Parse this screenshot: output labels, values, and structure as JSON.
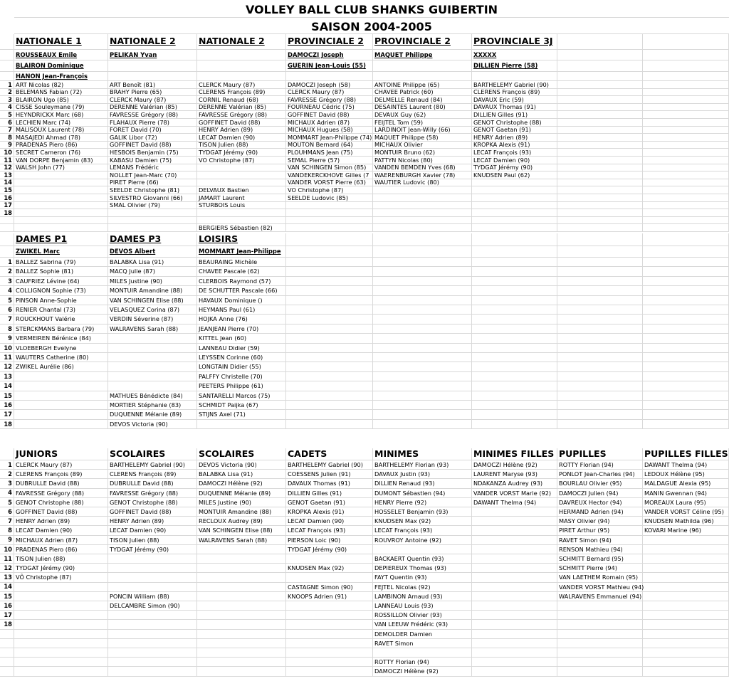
{
  "title": "VOLLEY BALL CLUB SHANKS GUIBERTIN",
  "season": "SAISON 2004-2005",
  "sections": [
    {
      "headers": [
        "NATIONALE 1",
        "NATIONALE 2",
        "NATIONALE 2",
        "PROVINCIALE 2",
        "PROVINCIALE 2",
        "PROVINCIALE 3J",
        "",
        ""
      ],
      "headers_underlined": true,
      "captains": [
        [
          "ROUSSEAUX  Emile",
          "PELIKAN  Yvan",
          "",
          "DAMOCZI   Joseph",
          "MAQUET  Philippe",
          "XXXXX",
          "",
          ""
        ],
        [
          "BLAIRON  Dominique",
          "",
          "",
          "GUERIN  Jean-Louis (55)",
          "",
          "DILLIEN  Pierre  (58)",
          "",
          ""
        ],
        [
          "HANON  Jean-François",
          "",
          "",
          "",
          "",
          "",
          "",
          ""
        ]
      ],
      "numbered_rows": 18,
      "columns": [
        [
          "ART  Nicolas  (82)",
          "BELEMANS  Fabian  (72)",
          "BLAIRON  Ugo (85)",
          "CISSE  Souleymane  (79)",
          "HEYNDRICKX  Marc (68)",
          "LECHIEN  Marc  (74)",
          "MALISOUX  Laurent  (78)",
          "MASAJEDI  Ahmad (78)",
          "PRADENAS  Piero  (86)",
          "SECRET  Cameron (76)",
          "VAN DORPE  Benjamin (83)",
          "WALSH  John  (77)"
        ],
        [
          "ART  Benoît  (81)",
          "BRAHY  Pierre  (65)",
          "CLERCK  Maury (87)",
          "DERENNE  Valérian (85)",
          "FAVRESSE  Grégory  (88)",
          "FLAHAUX  Pierre  (78)",
          "FORET  David  (70)",
          "GALIK  Libor  (72)",
          "GOFFINET  David (88)",
          "HESBOIS  Benjamin (75)",
          "KABASU  Damien (75)",
          "LEMANS  Frédéric",
          "NOLLET  Jean-Marc  (70)",
          "PIRET  Pierre (66)",
          "SEELDE  Christophe (81)",
          "SILVESTRO  Giovanni (66)",
          "SMAL  Olivier  (79)"
        ],
        [
          "CLERCK  Maury (87)",
          "CLERENS  François  (89)",
          "CORNIL  Renaud (68)",
          "DERENNE  Valérian (85)",
          "FAVRESSE  Grégory  (88)",
          "GOFFINET  David (88)",
          "HENRY  Adrien (89)",
          "LECAT Damien (90)",
          "TISON  Julien (88)",
          "TYDGAT Jérémy (90)",
          "VO  Christophe (87)",
          "",
          "",
          "",
          "DELVAUX  Bastien",
          "JAMART  Laurent",
          "STURBOIS Louis",
          "",
          "",
          "BERGIERS  Sébastien (82)"
        ],
        [
          "DAMOCZI   Joseph (58)",
          "CLERCK  Maury (87)",
          "FAVRESSE  Grégory  (88)",
          "FOURNEAU  Cédric (75)",
          "GOFFINET  David (88)",
          "MICHAUX  Adrien  (87)",
          "MICHAUX  Hugues  (58)",
          "MOMMART Jean-Philippe (74)",
          "MOUTON  Bernard  (64)",
          "PLOUHMANS Jean  (75)",
          "SEMAL  Pierre (57)",
          "VAN SCHINGEN  Simon (85)",
          "VANDEKERCKHOVE  Gilles (7",
          "VANDER VORST  Pierre (63)",
          "VO  Christophe (87)",
          "SEELDE  Ludovic (85)"
        ],
        [
          "ANTOINE  Philippe  (65)",
          "CHAVEE  Patrick  (60)",
          "DELMELLE  Renaud  (84)",
          "DESAINTES  Laurent  (80)",
          "DEVAUX  Guy  (62)",
          "FEIJTEL  Tom  (59)",
          "LARDINOIT  Jean-Willy  (66)",
          "MAQUET  Philippe (58)",
          "MICHAUX  Olivier",
          "MONTUIR  Bruno  (62)",
          "PATTYN  Nicolas (80)",
          "VANDEN BEMDEN  Yves (68)",
          "WAERENBURGH  Xavier  (78)",
          "WAUTIER  Ludovic  (80)"
        ],
        [
          "BARTHELEMY  Gabriel (90)",
          "CLERENS  François  (89)",
          "DAVAUX  Eric  (59)",
          "DAVAUX  Thomas (91)",
          "DILLIEN  Gilles (91)",
          "GENOT  Christophe  (88)",
          "GENOT  Gaetan (91)",
          "HENRY  Adrien (89)",
          "KROPKA  Alexis (91)",
          "LECAT  François (93)",
          "LECAT Damien (90)",
          "TYDGAT Jérémy (90)",
          "KNUDSEN  Paul (62)"
        ],
        [],
        []
      ]
    },
    {
      "headers": [
        "DAMES P1",
        "DAMES P3",
        "LOISIRS",
        "",
        "",
        "",
        "",
        ""
      ],
      "headers_underlined": true,
      "captains": [
        [
          "ZWIKEL  Marc",
          "DEVOS  Albert",
          "MOMMART  Jean-Philippe",
          "",
          "",
          "",
          "",
          ""
        ]
      ],
      "numbered_rows": 18,
      "columns": [
        [
          "BALLEZ  Sabrina  (79)",
          "BALLEZ  Sophie  (81)",
          "CAUFRIEZ  Lévine (64)",
          "COLLIGNON  Sophie (73)",
          "PINSON  Anne-Sophie",
          "RENIER  Chantal (73)",
          "ROUCKHOUT  Valérie",
          "STERCKMANS  Barbara  (79)",
          "VERMEIREN  Bérénice  (84)",
          "VLOEBERGH  Evelyne",
          "WAUTERS  Catherine  (80)",
          "ZWIKEL  Aurélie  (86)"
        ],
        [
          "BALABKA  Lisa  (91)",
          "MACQ  Julie (87)",
          "MILES  Justine  (90)",
          "MONTUIR  Amandine  (88)",
          "VAN SCHINGEN  Elise (88)",
          "VELASQUEZ  Corina (87)",
          "VERDIN  Séverine (87)",
          "WALRAVENS  Sarah (88)",
          "",
          "",
          "",
          "",
          "",
          "",
          "MATHUES  Bénédicte  (84)",
          "MORTIER  Stéphanie  (83)",
          "DUQUENNE  Mélanie  (89)",
          "DEVOS  Victoria (90)"
        ],
        [
          "BEAURAING  Michèle",
          "CHAVEE  Pascale  (62)",
          "CLERBOIS  Raymond  (57)",
          "DE SCHUTTER  Pascale (66)",
          "HAVAUX  Dominique ()",
          "HEYMANS  Paul (61)",
          "HOJKA  Anne  (76)",
          "JEANJEAN  Pierre (70)",
          "KITTEL  Jean  (60)",
          "LANNEAU  Didier  (59)",
          "LEYSSEN  Corinne  (60)",
          "LONGTAIN  Didier  (55)",
          "PALFFY  Christelle (70)",
          "PEETERS  Philippe (61)",
          "SANTARELLI  Marcos (75)",
          "SCHMIDT  Paijka (67)",
          "STIJNS  Axel (71)"
        ],
        [],
        [],
        [],
        [],
        []
      ]
    },
    {
      "headers": [
        "JUNIORS",
        "SCOLAIRES",
        "SCOLAIRES",
        "CADETS",
        "MINIMES",
        "MINIMES FILLES",
        "PUPILLES",
        "PUPILLES FILLES"
      ],
      "headers_underlined": false,
      "captains": [],
      "numbered_rows": 18,
      "columns": [
        [
          "CLERCK  Maury (87)",
          "CLERENS  François (89)",
          "DUBRULLE  David  (88)",
          "FAVRESSE  Grégory (88)",
          "GENOT  Christophe (88)",
          "GOFFINET  David (88)",
          "HENRY  Adrien (89)",
          "LECAT  Damien (90)",
          "MICHAUX  Adrien (87)",
          "PRADENAS  Piero (86)",
          "TISON  Julien  (88)",
          "TYDGAT  Jérémy (90)",
          "VÔ  Christophe (87)"
        ],
        [
          "BARTHELEMY  Gabriel  (90)",
          "CLERENS  François (89)",
          "DUBRULLE  David  (88)",
          "FAVRESSE  Grégory (88)",
          "GENOT  Christophe (88)",
          "GOFFINET  David (88)",
          "HENRY  Adrien (89)",
          "LECAT  Damien (90)",
          "TISON  Julien  (88)",
          "TYDGAT  Jérémy (90)",
          "",
          "",
          "",
          "",
          "PONCIN  William (88)",
          "DELCAMBRE  Simon (90)"
        ],
        [
          "DEVOS  Victoria (90)",
          "BALABKA  Lisa  (91)",
          "DAMOCZI   Hélène (92)",
          "DUQUENNE  Mélanie  (89)",
          "MILES  Justine  (90)",
          "MONTUIR  Amandine  (88)",
          "RECLOUX  Audrey  (89)",
          "VAN SCHINGEN  Elise (88)",
          "WALRAVENS  Sarah (88)"
        ],
        [
          "BARTHELEMY  Gabriel  (90)",
          "COESSENS  Julien (91)",
          "DAVAUX  Thomas (91)",
          "DILLIEN  Gilles (91)",
          "GENOT  Gaetan (91)",
          "KROPKA  Alexis (91)",
          "LECAT  Damien (90)",
          "LECAT  François (93)",
          "PIERSON  Loic (90)",
          "TYDGAT  Jérémy (90)",
          "",
          "KNUDSEN  Max (92)",
          "",
          "CASTAGNE  Simon  (90)",
          "KNOOPS  Adrien (91)"
        ],
        [
          "BARTHELEMY  Florian (93)",
          "DAVAUX  Justin (93)",
          "DILLIEN  Renaud (93)",
          "DUMONT  Sébastien (94)",
          "HENRY  Pierre (92)",
          "HOSSELET  Benjamin (93)",
          "KNUDSEN  Max (92)",
          "LECAT  François (93)",
          "ROUVROY  Antoine (92)",
          "",
          "BACKAERT  Quentin (93)",
          "DEPIEREUX  Thomas (93)",
          "FAYT  Quentin (93)",
          "FEJTEL  Nicolas (92)",
          "LAMBINON  Arnaud (93)",
          "LANNEAU  Louis (93)",
          "ROSSILLON  Olivier (93)",
          "VAN LEEUW  Frédéric (93)",
          "DEMOLDER  Damien",
          "RAVET  Simon",
          "",
          "ROTTY  Florian (94)",
          "DAMOCZI   Hélène (92)"
        ],
        [
          "DAMOCZI   Hélène (92)",
          "LAURENT  Maryse (93)",
          "NDAKANZA  Audrey (93)",
          "VANDER VORST  Marie (92)",
          "DAWANT  Thelma (94)"
        ],
        [
          "ROTTY  Florian (94)",
          "PONLOT  Jean-Charles (94)",
          "BOURLAU  Olivier (95)",
          "DAMOCZI   Julien (94)",
          "DAVREUX  Hector (94)",
          "HERMAND  Adrien (94)",
          "MASY  Olivier (94)",
          "PIRET  Arthur (95)",
          "RAVET  Simon (94)",
          "RENSON  Mathieu (94)",
          "SCHMITT  Bernard  (95)",
          "SCHMITT  Pierre  (94)",
          "VAN LAETHEM  Romain (95)",
          "VANDER VORST  Mathieu (94)",
          "WALRAVENS  Emmanuel  (94)"
        ],
        [
          "DAWANT  Thelma (94)",
          "LEDOUX  Hélène (95)",
          "MALDAGUE  Alexia (95)",
          "MANIN  Gwennan (94)",
          "MOREAUX  Laura (95)",
          "VANDER VORST  Céline (95)",
          "KNUDSEN  Mathilda (96)",
          "KOVARI  Marine (96)"
        ]
      ]
    }
  ]
}
